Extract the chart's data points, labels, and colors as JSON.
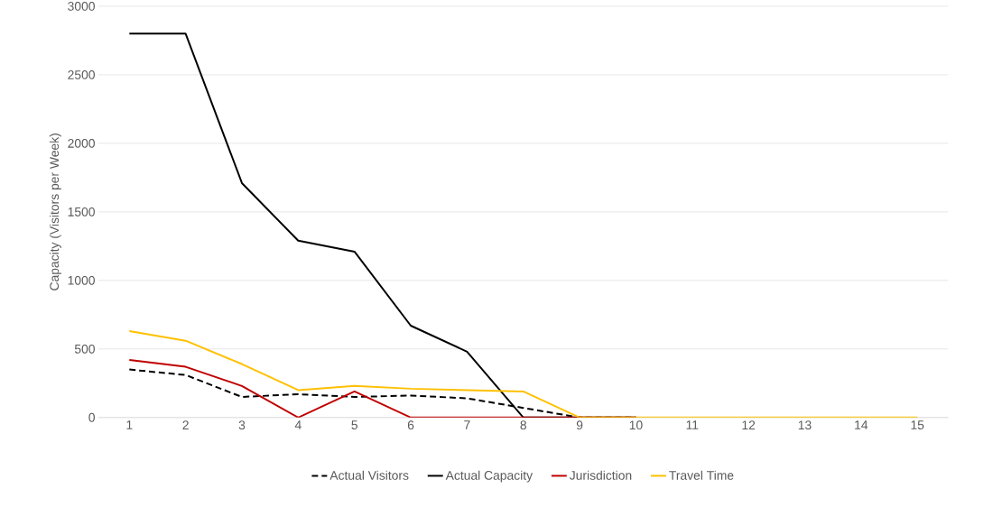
{
  "chart_data": {
    "type": "line",
    "ylabel": "Capacity (Visitors per Week)",
    "categories": [
      "1",
      "2",
      "3",
      "4",
      "5",
      "6",
      "7",
      "8",
      "9",
      "10",
      "11",
      "12",
      "13",
      "14",
      "15"
    ],
    "series": [
      {
        "name": "Actual Visitors",
        "color": "#000000",
        "line_style": "dashed",
        "values": [
          350,
          310,
          150,
          170,
          150,
          160,
          140,
          70,
          0,
          0,
          null,
          null,
          null,
          null,
          null
        ]
      },
      {
        "name": "Actual Capacity",
        "color": "#000000",
        "values": [
          2800,
          2800,
          1710,
          1290,
          1210,
          670,
          480,
          0,
          0,
          0,
          null,
          null,
          null,
          null,
          null
        ]
      },
      {
        "name": "Jurisdiction",
        "color": "#c00000",
        "values": [
          420,
          370,
          230,
          0,
          190,
          0,
          0,
          0,
          0,
          0,
          null,
          null,
          null,
          null,
          null
        ]
      },
      {
        "name": "Travel Time",
        "color": "#ffc000",
        "values": [
          630,
          560,
          390,
          200,
          230,
          210,
          200,
          190,
          0,
          0,
          0,
          0,
          0,
          0,
          0
        ]
      }
    ],
    "ylim": [
      0,
      3000
    ],
    "yticks": [
      0,
      500,
      1000,
      1500,
      2000,
      2500,
      3000
    ],
    "grid": "y",
    "legend": "bottom",
    "marker": "none",
    "line_style": "solid"
  }
}
